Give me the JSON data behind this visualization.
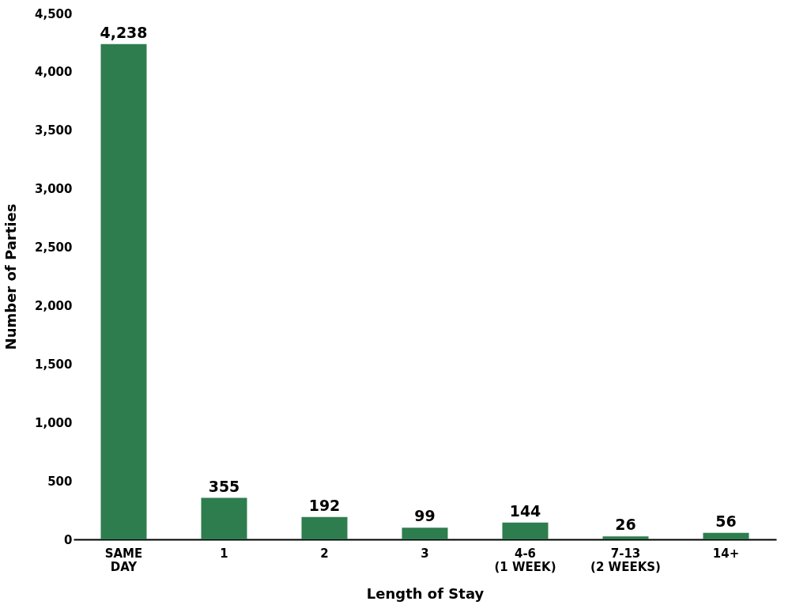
{
  "chart_data": {
    "type": "bar",
    "xlabel": "Length of Stay",
    "ylabel": "Number of Parties",
    "categories": [
      "SAME DAY",
      "1",
      "2",
      "3",
      "4-6 (1 WEEK)",
      "7-13 (2 WEEKS)",
      "14+"
    ],
    "values": [
      4238,
      355,
      192,
      99,
      144,
      26,
      56
    ],
    "value_labels": [
      "4,238",
      "355",
      "192",
      "99",
      "144",
      "26",
      "56"
    ],
    "color": "#2e7d4f",
    "ylim": [
      0,
      4500
    ],
    "yticks": [
      0,
      500,
      {
        "value": 1000,
        "label": "1,000"
      },
      {
        "value": 1500,
        "label": "1,500"
      },
      {
        "value": 2000,
        "label": "2,000"
      },
      {
        "value": 2500,
        "label": "2,500"
      },
      {
        "value": 3000,
        "label": "3,000"
      },
      {
        "value": 3500,
        "label": "3,500"
      },
      {
        "value": 4000,
        "label": "4,000"
      },
      {
        "value": 4500,
        "label": "4,500"
      }
    ],
    "grid": false
  }
}
